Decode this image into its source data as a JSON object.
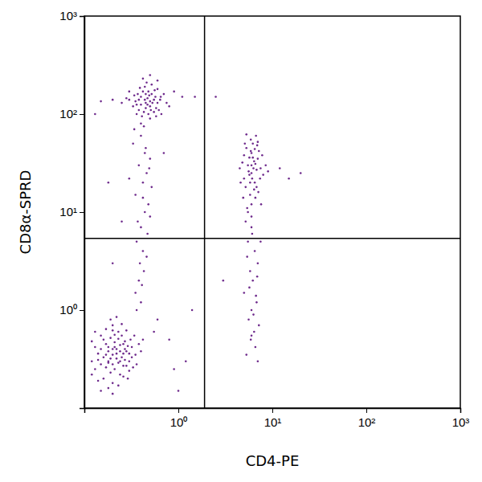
{
  "chart_data": {
    "type": "scatter",
    "x_label": "CD4-PE",
    "y_label": "CD8α-SPRD",
    "color": "#6e2a8c",
    "log": true,
    "grid": false,
    "xlim": [
      0.1,
      1000
    ],
    "ylim": [
      0.1,
      1000
    ],
    "xticks": [
      {
        "value": 1,
        "label": "10⁰"
      },
      {
        "value": 10,
        "label": "10¹"
      },
      {
        "value": 100,
        "label": "10²"
      },
      {
        "value": 1000,
        "label": "10³"
      }
    ],
    "yticks": [
      {
        "value": 1,
        "label": "10⁰"
      },
      {
        "value": 10,
        "label": "10¹"
      },
      {
        "value": 100,
        "label": "10²"
      },
      {
        "value": 1000,
        "label": "10³"
      }
    ],
    "quadrant_x": 1.9,
    "quadrant_y": 5.4,
    "x": [
      0.2,
      0.18,
      0.22,
      0.25,
      0.15,
      0.17,
      0.21,
      0.28,
      0.19,
      0.24,
      0.14,
      0.3,
      0.16,
      0.23,
      0.27,
      0.13,
      0.2,
      0.32,
      0.26,
      0.18,
      0.22,
      0.35,
      0.15,
      0.2,
      0.12,
      0.29,
      0.24,
      0.17,
      0.21,
      0.19,
      0.33,
      0.25,
      0.14,
      0.28,
      0.16,
      0.23,
      0.38,
      0.2,
      0.26,
      0.18,
      0.13,
      0.31,
      0.22,
      0.17,
      0.27,
      0.12,
      0.36,
      0.24,
      0.2,
      0.15,
      0.29,
      0.19,
      0.21,
      0.26,
      0.16,
      0.4,
      0.23,
      0.18,
      0.3,
      0.14,
      0.25,
      0.2,
      0.34,
      0.22,
      0.17,
      0.28,
      0.13,
      0.24,
      0.19,
      0.32,
      0.15,
      0.42,
      0.21,
      0.26,
      0.18,
      0.23,
      0.12,
      0.3,
      0.2,
      0.27,
      0.45,
      0.4,
      0.5,
      0.55,
      0.38,
      0.42,
      0.48,
      0.6,
      0.35,
      0.52,
      0.44,
      0.58,
      0.4,
      0.47,
      0.65,
      0.3,
      0.5,
      0.43,
      0.56,
      0.37,
      0.62,
      0.46,
      0.41,
      0.53,
      0.7,
      0.33,
      0.49,
      0.45,
      0.39,
      0.58,
      0.28,
      0.52,
      0.44,
      0.6,
      0.36,
      0.5,
      0.75,
      0.42,
      0.55,
      0.47,
      0.25,
      0.64,
      0.4,
      0.48,
      0.57,
      0.34,
      0.45,
      0.8,
      0.51,
      0.38,
      0.2,
      0.15,
      0.9,
      1.1,
      0.3,
      0.6,
      0.43,
      0.66,
      0.5,
      0.36,
      0.4,
      0.45,
      0.38,
      0.42,
      0.5,
      0.35,
      0.44,
      0.4,
      0.48,
      0.36,
      0.42,
      0.46,
      0.33,
      0.52,
      0.39,
      0.43,
      0.37,
      0.41,
      0.47,
      0.35,
      0.4,
      0.44,
      0.3,
      0.5,
      0.38,
      0.42,
      0.34,
      0.46,
      0.36,
      0.49,
      6,
      5.5,
      6.5,
      7,
      5,
      6,
      5.8,
      7.5,
      6.2,
      4.8,
      6.8,
      5.3,
      6,
      7.2,
      5.6,
      6.4,
      8,
      4.5,
      5.9,
      6.6,
      5.2,
      7.8,
      6.1,
      5.7,
      6.9,
      5.4,
      6.3,
      8.5,
      5,
      6.7,
      5.8,
      7.1,
      6,
      4.6,
      6.5,
      5.5,
      7.4,
      6.2,
      9,
      5.1,
      6.8,
      5.9,
      7.6,
      6.4,
      5.3,
      6,
      7,
      5.7,
      4.9,
      6.6,
      6,
      5.5,
      6.5,
      7,
      5.8,
      6.2,
      5,
      6.8,
      6,
      5.6,
      7.2,
      6.4,
      5.9,
      6.6,
      5.3,
      7,
      6.1,
      5.4,
      6.9,
      5.7,
      6.3,
      7.5,
      5.2,
      6,
      6.7,
      0.8,
      1.2,
      0.6,
      12,
      15,
      1.5,
      0.18,
      0.25,
      0.2,
      1.4,
      3,
      0.7,
      20,
      0.9,
      0.55,
      0.13,
      2.5,
      1
    ],
    "values": [
      0.35,
      0.3,
      0.4,
      0.33,
      0.28,
      0.45,
      0.25,
      0.38,
      0.52,
      0.22,
      0.36,
      0.3,
      0.2,
      0.6,
      0.48,
      0.42,
      0.18,
      0.42,
      0.27,
      0.38,
      0.32,
      0.35,
      0.55,
      0.7,
      0.3,
      0.2,
      0.44,
      0.26,
      0.47,
      0.23,
      0.26,
      0.55,
      0.19,
      0.62,
      0.33,
      0.29,
      0.45,
      0.4,
      0.36,
      0.16,
      0.25,
      0.5,
      0.85,
      0.64,
      0.31,
      0.48,
      0.28,
      0.38,
      0.28,
      0.4,
      0.43,
      0.32,
      0.56,
      0.21,
      0.5,
      0.38,
      0.17,
      0.42,
      0.36,
      0.31,
      0.72,
      0.14,
      0.55,
      0.36,
      0.35,
      0.27,
      0.6,
      0.3,
      0.8,
      0.33,
      0.15,
      0.5,
      0.42,
      0.45,
      0.29,
      0.51,
      0.22,
      0.24,
      0.62,
      0.4,
      130,
      150,
      120,
      140,
      110,
      170,
      100,
      130,
      135,
      160,
      190,
      115,
      125,
      145,
      150,
      140,
      90,
      105,
      175,
      160,
      110,
      210,
      95,
      130,
      160,
      120,
      155,
      115,
      185,
      95,
      145,
      200,
      140,
      180,
      100,
      135,
      130,
      230,
      105,
      125,
      130,
      140,
      80,
      170,
      150,
      155,
      160,
      120,
      110,
      140,
      140,
      135,
      170,
      150,
      170,
      220,
      75,
      100,
      250,
      125,
      60,
      45,
      30,
      20,
      35,
      15,
      10,
      7,
      12,
      5,
      4,
      25,
      50,
      18,
      3,
      2.5,
      8,
      1.8,
      6,
      1.5,
      1.2,
      40,
      22,
      9,
      2,
      14,
      70,
      3.5,
      1,
      28,
      25,
      30,
      20,
      35,
      22,
      40,
      15,
      28,
      50,
      32,
      18,
      45,
      12,
      42,
      26,
      33,
      24,
      28,
      55,
      14,
      18,
      38,
      22,
      36,
      48,
      11,
      28,
      30,
      38,
      60,
      20,
      16,
      30,
      20,
      44,
      10,
      22,
      36,
      26,
      50,
      27,
      42,
      12,
      17,
      62,
      9,
      52,
      24,
      14,
      31,
      7,
      5,
      4,
      3,
      2.5,
      2,
      1.5,
      1.2,
      1,
      0.8,
      0.7,
      0.6,
      0.5,
      0.42,
      0.35,
      0.3,
      6,
      3.5,
      2.2,
      1.7,
      0.9,
      5,
      8,
      0.55,
      1.4,
      0.5,
      0.3,
      0.8,
      28,
      22,
      150,
      20,
      8,
      3,
      1,
      2,
      40,
      25,
      0.25,
      0.6,
      100,
      150,
      0.15
    ]
  }
}
